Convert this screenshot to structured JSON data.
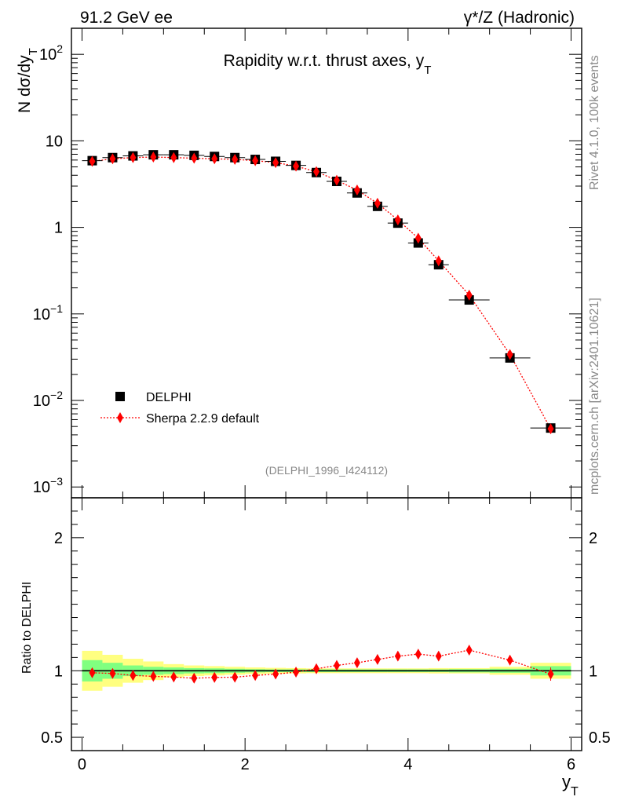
{
  "header": {
    "energy_label": "91.2 GeV ee",
    "process_label": "γ*/Z (Hadronic)"
  },
  "side_labels": {
    "rivet": "Rivet 4.1.0,  100k events",
    "source": "mcplots.cern.ch [arXiv:2401.10621]"
  },
  "colors": {
    "data": "#000000",
    "mc": "#ff0000",
    "band_outer": "#ffff80",
    "band_inner": "#80ff80",
    "ratio_line": "#000000"
  },
  "chart_data": [
    {
      "type": "scatter",
      "scale": "log",
      "title": "Rapidity w.r.t. thrust axes, y",
      "title_sub": "T",
      "ylabel": "N  dσ/dy",
      "ylabel_sub": "T",
      "analysis_id": "(DELPHI_1996_I424112)",
      "ylim": [
        0.00075,
        200
      ],
      "xlim": [
        -0.13,
        6.13
      ],
      "y_ticks": [
        {
          "value": 100,
          "base": "10",
          "exp": "2"
        },
        {
          "value": 10,
          "base": "10",
          "exp": ""
        },
        {
          "value": 1,
          "base": "1",
          "exp": ""
        },
        {
          "value": 0.1,
          "base": "10",
          "exp": "−1"
        },
        {
          "value": 0.01,
          "base": "10",
          "exp": "−2"
        },
        {
          "value": 0.001,
          "base": "10",
          "exp": "−3"
        }
      ],
      "legend": {
        "position": "bottom-left",
        "entries": [
          "DELPHI",
          "Sherpa 2.2.9 default"
        ]
      },
      "series": [
        {
          "name": "DELPHI",
          "marker": "square",
          "x": [
            0.125,
            0.375,
            0.625,
            0.875,
            1.125,
            1.375,
            1.625,
            1.875,
            2.125,
            2.375,
            2.625,
            2.875,
            3.125,
            3.375,
            3.625,
            3.875,
            4.125,
            4.375,
            4.75,
            5.25,
            5.75
          ],
          "x_err": [
            0.125,
            0.125,
            0.125,
            0.125,
            0.125,
            0.125,
            0.125,
            0.125,
            0.125,
            0.125,
            0.125,
            0.125,
            0.125,
            0.125,
            0.125,
            0.125,
            0.125,
            0.125,
            0.25,
            0.25,
            0.25
          ],
          "y": [
            5.9,
            6.4,
            6.7,
            6.9,
            6.9,
            6.8,
            6.6,
            6.4,
            6.1,
            5.8,
            5.2,
            4.3,
            3.4,
            2.5,
            1.75,
            1.12,
            0.66,
            0.37,
            0.145,
            0.031,
            0.0048
          ]
        },
        {
          "name": "Sherpa 2.2.9 default",
          "marker": "diamond",
          "line": "dotted",
          "x": [
            0.125,
            0.375,
            0.625,
            0.875,
            1.125,
            1.375,
            1.625,
            1.875,
            2.125,
            2.375,
            2.625,
            2.875,
            3.125,
            3.375,
            3.625,
            3.875,
            4.125,
            4.375,
            4.75,
            5.25,
            5.75
          ],
          "y": [
            5.8,
            6.2,
            6.4,
            6.5,
            6.4,
            6.3,
            6.2,
            6.1,
            5.9,
            5.6,
            5.1,
            4.4,
            3.5,
            2.7,
            1.9,
            1.22,
            0.75,
            0.41,
            0.165,
            0.034,
            0.0047
          ]
        }
      ]
    },
    {
      "type": "scatter",
      "scale": "linear",
      "ylabel": "Ratio to DELPHI",
      "xlabel": "y",
      "xlabel_sub": "T",
      "ylim": [
        0.4,
        2.3
      ],
      "xlim": [
        -0.13,
        6.13
      ],
      "x_ticks": [
        0,
        2,
        4,
        6
      ],
      "y_ticks": [
        0.5,
        1,
        2
      ],
      "y_tick_labels": [
        "0.5",
        "1",
        "2"
      ],
      "bands": {
        "x_low": [
          0,
          0.25,
          0.5,
          0.75,
          1.0,
          1.25,
          1.5,
          1.75,
          2.0,
          2.25,
          2.5,
          2.75,
          3.0,
          3.25,
          3.5,
          3.75,
          4.0,
          4.25,
          4.5,
          5.0,
          5.5
        ],
        "x_high": [
          0.25,
          0.5,
          0.75,
          1.0,
          1.25,
          1.5,
          1.75,
          2.0,
          2.25,
          2.5,
          2.75,
          3.0,
          3.25,
          3.5,
          3.75,
          4.0,
          4.25,
          4.5,
          5.0,
          5.5,
          6.0
        ],
        "outer_half_width": [
          0.15,
          0.12,
          0.09,
          0.07,
          0.05,
          0.04,
          0.035,
          0.03,
          0.025,
          0.022,
          0.02,
          0.018,
          0.018,
          0.018,
          0.018,
          0.018,
          0.018,
          0.02,
          0.02,
          0.03,
          0.06
        ],
        "inner_half_width": [
          0.08,
          0.06,
          0.04,
          0.03,
          0.025,
          0.02,
          0.018,
          0.015,
          0.012,
          0.01,
          0.01,
          0.01,
          0.01,
          0.01,
          0.01,
          0.01,
          0.01,
          0.01,
          0.012,
          0.015,
          0.035
        ]
      },
      "series": [
        {
          "name": "Sherpa 2.2.9 default / DELPHI",
          "marker": "diamond",
          "line": "dotted",
          "x": [
            0.125,
            0.375,
            0.625,
            0.875,
            1.125,
            1.375,
            1.625,
            1.875,
            2.125,
            2.375,
            2.625,
            2.875,
            3.125,
            3.375,
            3.625,
            3.875,
            4.125,
            4.375,
            4.75,
            5.25,
            5.75
          ],
          "y": [
            0.985,
            0.98,
            0.965,
            0.958,
            0.953,
            0.944,
            0.95,
            0.952,
            0.965,
            0.975,
            0.99,
            1.015,
            1.04,
            1.06,
            1.085,
            1.11,
            1.125,
            1.11,
            1.155,
            1.08,
            0.975
          ],
          "y_err": [
            0.01,
            0.01,
            0.01,
            0.01,
            0.01,
            0.01,
            0.01,
            0.01,
            0.01,
            0.01,
            0.01,
            0.01,
            0.01,
            0.01,
            0.01,
            0.01,
            0.01,
            0.01,
            0.01,
            0.015,
            0.05
          ]
        }
      ]
    }
  ]
}
